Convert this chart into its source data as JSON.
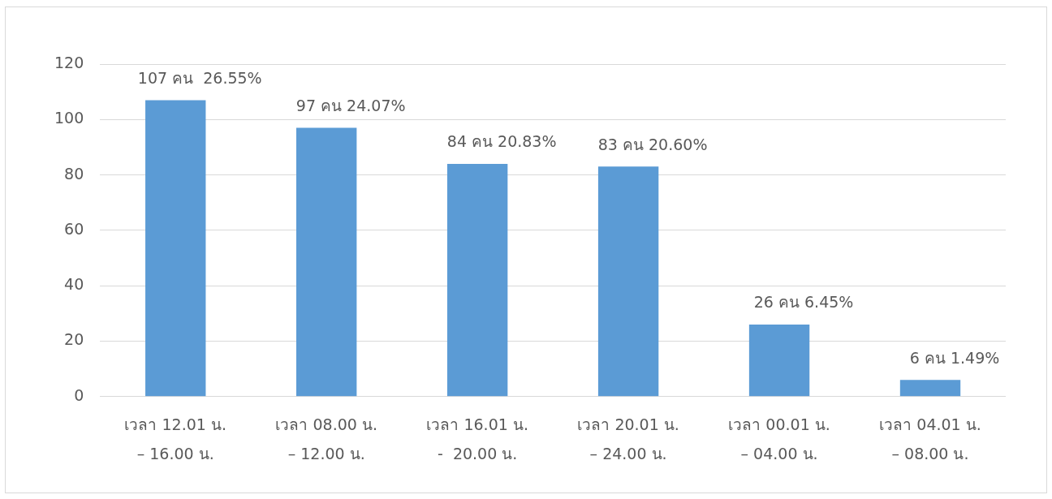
{
  "chart_data": {
    "type": "bar",
    "categories": [
      "เวลา 12.01 น.\n– 16.00 น.",
      "เวลา 08.00 น.\n– 12.00 น.",
      "เวลา 16.01 น.\n-  20.00 น.",
      "เวลา 20.01 น.\n– 24.00 น.",
      "เวลา 00.01 น.\n– 04.00 น.",
      "เวลา 04.01 น.\n– 08.00 น."
    ],
    "values": [
      107,
      97,
      84,
      83,
      26,
      6
    ],
    "value_labels": [
      "107 คน  26.55%",
      "97 คน 24.07%",
      "84 คน 20.83%",
      "83 คน 20.60%",
      "26 คน 6.45%",
      "6 คน 1.49%"
    ],
    "color": "#5b9bd5",
    "ylim": [
      0,
      120
    ],
    "yticks": [
      0,
      20,
      40,
      60,
      80,
      100,
      120
    ],
    "grid": "y",
    "legend": false
  }
}
